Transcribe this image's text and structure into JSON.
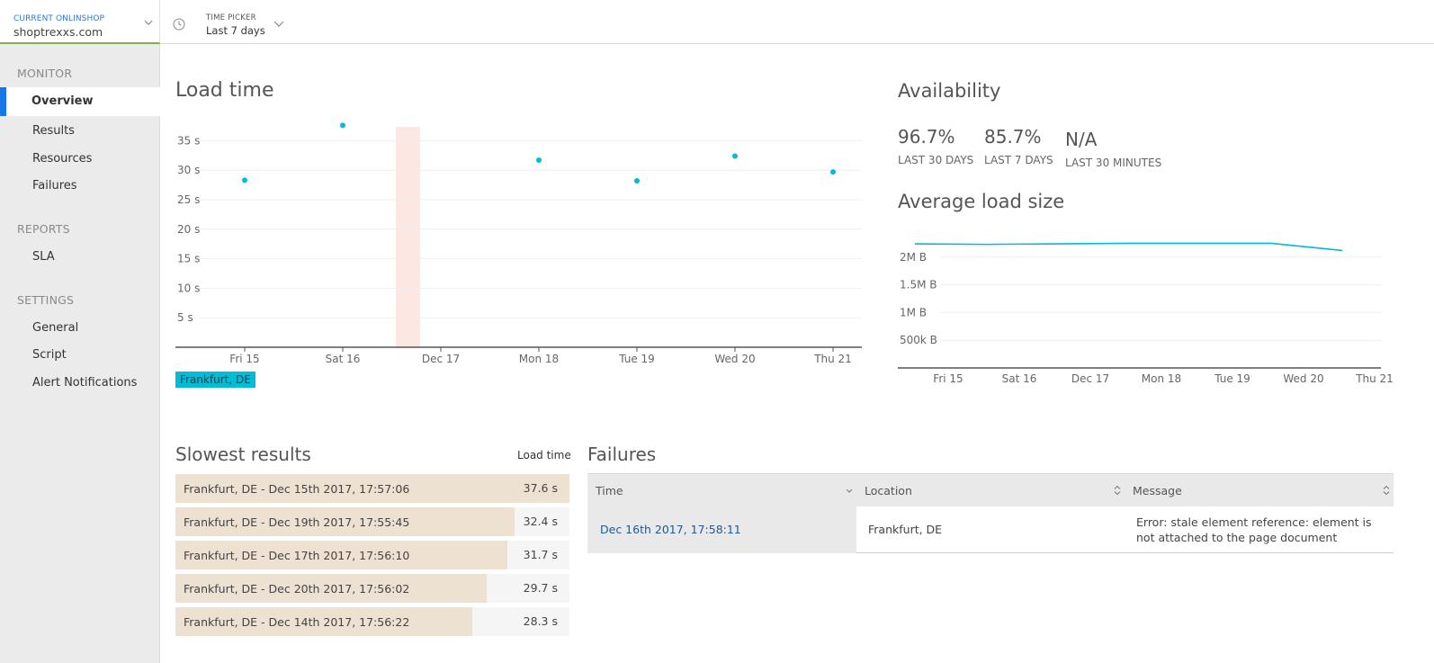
{
  "topbar": {
    "shop_label": "CURRENT ONLINSHOP",
    "shop_value": "shoptrexxs.com",
    "time_label": "TIME PICKER",
    "time_value": "Last 7 days"
  },
  "sidebar": {
    "sections": [
      {
        "title": "MONITOR",
        "items": [
          "Overview",
          "Results",
          "Resources",
          "Failures"
        ]
      },
      {
        "title": "REPORTS",
        "items": [
          "SLA"
        ]
      },
      {
        "title": "SETTINGS",
        "items": [
          "General",
          "Script",
          "Alert Notifications"
        ]
      }
    ],
    "active": "Overview",
    "accent": "#1876e8"
  },
  "load_time": {
    "title": "Load time",
    "legend": "Frankfurt, DE",
    "chart_data": {
      "type": "scatter",
      "categories": [
        "Fri 15",
        "Sat 16",
        "Dec 17",
        "Mon 18",
        "Tue 19",
        "Wed 20",
        "Thu 21"
      ],
      "yticks": [
        "5 s",
        "10 s",
        "15 s",
        "20 s",
        "25 s",
        "30 s",
        "35 s"
      ],
      "ylim": [
        0,
        37
      ],
      "series": [
        {
          "name": "Frankfurt, DE",
          "color": "#00bcd4",
          "points": [
            {
              "x": "Fri 15",
              "y": 28.3
            },
            {
              "x": "Sat 16",
              "y": 37.6
            },
            {
              "x": "Mon 18",
              "y": 31.7
            },
            {
              "x": "Tue 19",
              "y": 28.2
            },
            {
              "x": "Wed 20",
              "y": 32.4
            },
            {
              "x": "Thu 21",
              "y": 29.7
            }
          ]
        }
      ],
      "highlight_band": {
        "x": "Sat 16-Dec 17",
        "color": "#fde7e3"
      }
    }
  },
  "availability": {
    "title": "Availability",
    "stats": [
      {
        "value": "96.7%",
        "caption": "LAST 30 DAYS"
      },
      {
        "value": "85.7%",
        "caption": "LAST 7 DAYS"
      },
      {
        "value": "N/A",
        "caption": "LAST 30 MINUTES"
      }
    ]
  },
  "avg_load_size": {
    "title": "Average load size",
    "chart_data": {
      "type": "line",
      "categories": [
        "Fri 15",
        "Sat 16",
        "Dec 17",
        "Mon 18",
        "Tue 19",
        "Wed 20",
        "Thu 21"
      ],
      "yticks": [
        "500k B",
        "1M B",
        "1.5M B",
        "2M B"
      ],
      "series": [
        {
          "color": "#00bcd4",
          "values": [
            2.24,
            2.23,
            2.24,
            2.25,
            2.25,
            2.25,
            2.12
          ]
        }
      ]
    }
  },
  "slowest": {
    "title": "Slowest results",
    "col_header": "Load time",
    "rows": [
      {
        "label": "Frankfurt, DE - Dec 15th 2017, 17:57:06",
        "value": "37.6 s",
        "fraction": 1.0
      },
      {
        "label": "Frankfurt, DE - Dec 19th 2017, 17:55:45",
        "value": "32.4 s",
        "fraction": 0.861
      },
      {
        "label": "Frankfurt, DE - Dec 17th 2017, 17:56:10",
        "value": "31.7 s",
        "fraction": 0.843
      },
      {
        "label": "Frankfurt, DE - Dec 20th 2017, 17:56:02",
        "value": "29.7 s",
        "fraction": 0.79
      },
      {
        "label": "Frankfurt, DE - Dec 14th 2017, 17:56:22",
        "value": "28.3 s",
        "fraction": 0.753
      }
    ]
  },
  "failures": {
    "title": "Failures",
    "columns": [
      "Time",
      "Location",
      "Message"
    ],
    "rows": [
      {
        "time": "Dec 16th 2017, 17:58:11",
        "location": "Frankfurt, DE",
        "message": "Error: stale element reference: element is not attached to the page document"
      }
    ]
  }
}
